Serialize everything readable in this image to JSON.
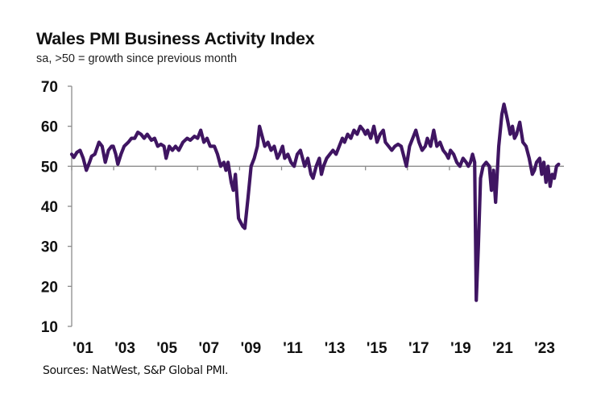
{
  "chart_data": {
    "type": "line",
    "title": "Wales PMI Business Activity Index",
    "subtitle": "sa, >50 = growth  since previous month",
    "xlabel": "",
    "ylabel": "",
    "ylim": [
      10,
      70
    ],
    "yticks": [
      "70",
      "60",
      "50",
      "40",
      "30",
      "20",
      "10"
    ],
    "ytick_values": [
      70,
      60,
      50,
      40,
      30,
      20,
      10
    ],
    "xlim": [
      2001.0,
      2024.2
    ],
    "xticks": [
      "'01",
      "'03",
      "'05",
      "'07",
      "'09",
      "'11",
      "'13",
      "'15",
      "'17",
      "'19",
      "'21",
      "'23"
    ],
    "xtick_years": [
      2001,
      2003,
      2005,
      2007,
      2009,
      2011,
      2013,
      2015,
      2017,
      2019,
      2021,
      2023
    ],
    "reference_line": 50,
    "grid": false,
    "line_color": "#3f1562",
    "series": [
      {
        "name": "Wales PMI Business Activity Index",
        "values": [
          [
            2001.0,
            53
          ],
          [
            2001.1,
            52.2
          ],
          [
            2001.25,
            53.5
          ],
          [
            2001.4,
            54
          ],
          [
            2001.55,
            52
          ],
          [
            2001.7,
            49
          ],
          [
            2001.85,
            51
          ],
          [
            2001.95,
            52.5
          ],
          [
            2002.1,
            53
          ],
          [
            2002.3,
            56
          ],
          [
            2002.45,
            55
          ],
          [
            2002.6,
            51
          ],
          [
            2002.75,
            54
          ],
          [
            2002.9,
            55
          ],
          [
            2002.98,
            55
          ],
          [
            2003.1,
            53
          ],
          [
            2003.2,
            50.5
          ],
          [
            2003.35,
            53
          ],
          [
            2003.5,
            55
          ],
          [
            2003.7,
            56
          ],
          [
            2003.85,
            57
          ],
          [
            2004.0,
            57
          ],
          [
            2004.15,
            58.5
          ],
          [
            2004.3,
            58
          ],
          [
            2004.45,
            57
          ],
          [
            2004.6,
            58
          ],
          [
            2004.8,
            56.5
          ],
          [
            2004.95,
            57
          ],
          [
            2005.1,
            55
          ],
          [
            2005.25,
            55.5
          ],
          [
            2005.4,
            55
          ],
          [
            2005.5,
            52
          ],
          [
            2005.65,
            55
          ],
          [
            2005.8,
            54
          ],
          [
            2005.95,
            55
          ],
          [
            2006.1,
            54
          ],
          [
            2006.3,
            56
          ],
          [
            2006.5,
            57
          ],
          [
            2006.65,
            56.5
          ],
          [
            2006.85,
            57.5
          ],
          [
            2007.0,
            57
          ],
          [
            2007.15,
            59
          ],
          [
            2007.3,
            56
          ],
          [
            2007.45,
            57
          ],
          [
            2007.6,
            55
          ],
          [
            2007.8,
            55
          ],
          [
            2007.95,
            53
          ],
          [
            2008.1,
            50
          ],
          [
            2008.25,
            51
          ],
          [
            2008.35,
            49
          ],
          [
            2008.45,
            51
          ],
          [
            2008.6,
            46
          ],
          [
            2008.7,
            44
          ],
          [
            2008.8,
            48
          ],
          [
            2008.95,
            37
          ],
          [
            2009.05,
            36
          ],
          [
            2009.15,
            35
          ],
          [
            2009.25,
            34.5
          ],
          [
            2009.4,
            42
          ],
          [
            2009.55,
            50
          ],
          [
            2009.7,
            52
          ],
          [
            2009.85,
            55
          ],
          [
            2009.95,
            60
          ],
          [
            2010.1,
            57
          ],
          [
            2010.2,
            55
          ],
          [
            2010.35,
            56
          ],
          [
            2010.5,
            54
          ],
          [
            2010.65,
            55
          ],
          [
            2010.8,
            52
          ],
          [
            2010.9,
            53
          ],
          [
            2011.05,
            55
          ],
          [
            2011.15,
            52
          ],
          [
            2011.3,
            53
          ],
          [
            2011.45,
            51
          ],
          [
            2011.6,
            50
          ],
          [
            2011.75,
            53
          ],
          [
            2011.9,
            54
          ],
          [
            2012.0,
            52
          ],
          [
            2012.1,
            50
          ],
          [
            2012.25,
            52
          ],
          [
            2012.4,
            48
          ],
          [
            2012.5,
            47
          ],
          [
            2012.65,
            50
          ],
          [
            2012.8,
            52
          ],
          [
            2012.9,
            48
          ],
          [
            2013.0,
            50
          ],
          [
            2013.15,
            52
          ],
          [
            2013.3,
            53
          ],
          [
            2013.45,
            54
          ],
          [
            2013.6,
            53
          ],
          [
            2013.75,
            55
          ],
          [
            2013.9,
            57
          ],
          [
            2014.0,
            56
          ],
          [
            2014.15,
            58
          ],
          [
            2014.3,
            57
          ],
          [
            2014.45,
            59
          ],
          [
            2014.6,
            58
          ],
          [
            2014.75,
            60
          ],
          [
            2014.9,
            59
          ],
          [
            2015.0,
            58
          ],
          [
            2015.1,
            59
          ],
          [
            2015.25,
            57
          ],
          [
            2015.4,
            60
          ],
          [
            2015.55,
            56
          ],
          [
            2015.7,
            58
          ],
          [
            2015.85,
            59
          ],
          [
            2015.95,
            56
          ],
          [
            2016.1,
            55
          ],
          [
            2016.25,
            54
          ],
          [
            2016.4,
            55
          ],
          [
            2016.55,
            55.5
          ],
          [
            2016.7,
            55
          ],
          [
            2016.85,
            52
          ],
          [
            2016.95,
            50
          ],
          [
            2017.1,
            55
          ],
          [
            2017.25,
            57
          ],
          [
            2017.4,
            59
          ],
          [
            2017.55,
            56
          ],
          [
            2017.7,
            54
          ],
          [
            2017.85,
            55
          ],
          [
            2017.95,
            57
          ],
          [
            2018.1,
            55
          ],
          [
            2018.25,
            59
          ],
          [
            2018.4,
            55
          ],
          [
            2018.55,
            56
          ],
          [
            2018.7,
            54
          ],
          [
            2018.85,
            53
          ],
          [
            2018.95,
            52
          ],
          [
            2019.05,
            54
          ],
          [
            2019.2,
            53
          ],
          [
            2019.35,
            51
          ],
          [
            2019.5,
            50
          ],
          [
            2019.65,
            52
          ],
          [
            2019.8,
            51
          ],
          [
            2019.9,
            50
          ],
          [
            2020.0,
            51
          ],
          [
            2020.1,
            53
          ],
          [
            2020.2,
            51
          ],
          [
            2020.28,
            16.5
          ],
          [
            2020.38,
            30
          ],
          [
            2020.48,
            47
          ],
          [
            2020.6,
            50
          ],
          [
            2020.75,
            51
          ],
          [
            2020.9,
            50
          ],
          [
            2021.0,
            44
          ],
          [
            2021.1,
            49
          ],
          [
            2021.2,
            41
          ],
          [
            2021.35,
            55
          ],
          [
            2021.5,
            63
          ],
          [
            2021.6,
            65.5
          ],
          [
            2021.75,
            62
          ],
          [
            2021.9,
            58
          ],
          [
            2022.0,
            60
          ],
          [
            2022.1,
            57
          ],
          [
            2022.2,
            58
          ],
          [
            2022.35,
            61
          ],
          [
            2022.5,
            56
          ],
          [
            2022.65,
            55
          ],
          [
            2022.8,
            52
          ],
          [
            2022.95,
            48
          ],
          [
            2023.05,
            49
          ],
          [
            2023.15,
            51
          ],
          [
            2023.3,
            52
          ],
          [
            2023.4,
            48
          ],
          [
            2023.5,
            51
          ],
          [
            2023.6,
            46
          ],
          [
            2023.7,
            50
          ],
          [
            2023.8,
            45
          ],
          [
            2023.9,
            48
          ],
          [
            2024.0,
            47
          ],
          [
            2024.1,
            50
          ],
          [
            2024.2,
            50.5
          ]
        ]
      }
    ]
  },
  "source": "Sources: NatWest, S&P Global PMI."
}
